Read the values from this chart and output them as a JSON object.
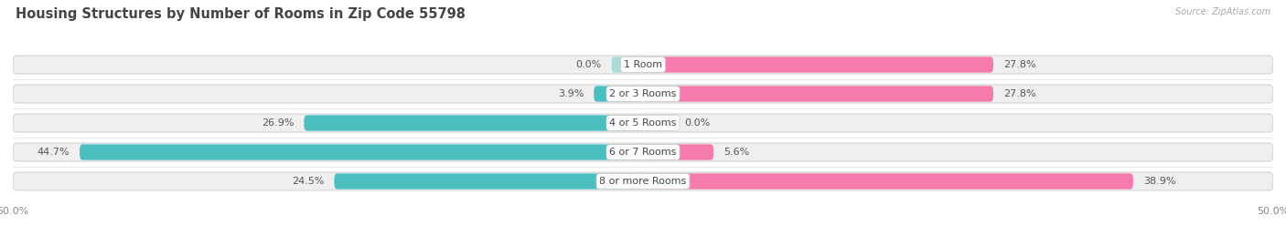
{
  "title": "Housing Structures by Number of Rooms in Zip Code 55798",
  "source": "Source: ZipAtlas.com",
  "categories": [
    "1 Room",
    "2 or 3 Rooms",
    "4 or 5 Rooms",
    "6 or 7 Rooms",
    "8 or more Rooms"
  ],
  "owner_values": [
    0.0,
    3.9,
    26.9,
    44.7,
    24.5
  ],
  "renter_values": [
    27.8,
    27.8,
    0.0,
    5.6,
    38.9
  ],
  "owner_color": "#4BBFC0",
  "renter_color": "#F47BAB",
  "owner_zero_color": "#A8DCDC",
  "renter_zero_color": "#F9C0D8",
  "bg_bar_color": "#EFEFEF",
  "bg_bar_border": "#D8D8D8",
  "axis_min": -50.0,
  "axis_max": 50.0,
  "bar_height": 0.62,
  "background_color": "#FFFFFF",
  "title_fontsize": 10.5,
  "label_fontsize": 8.0,
  "tick_fontsize": 8.0,
  "category_fontsize": 8.0,
  "legend_fontsize": 8.5
}
